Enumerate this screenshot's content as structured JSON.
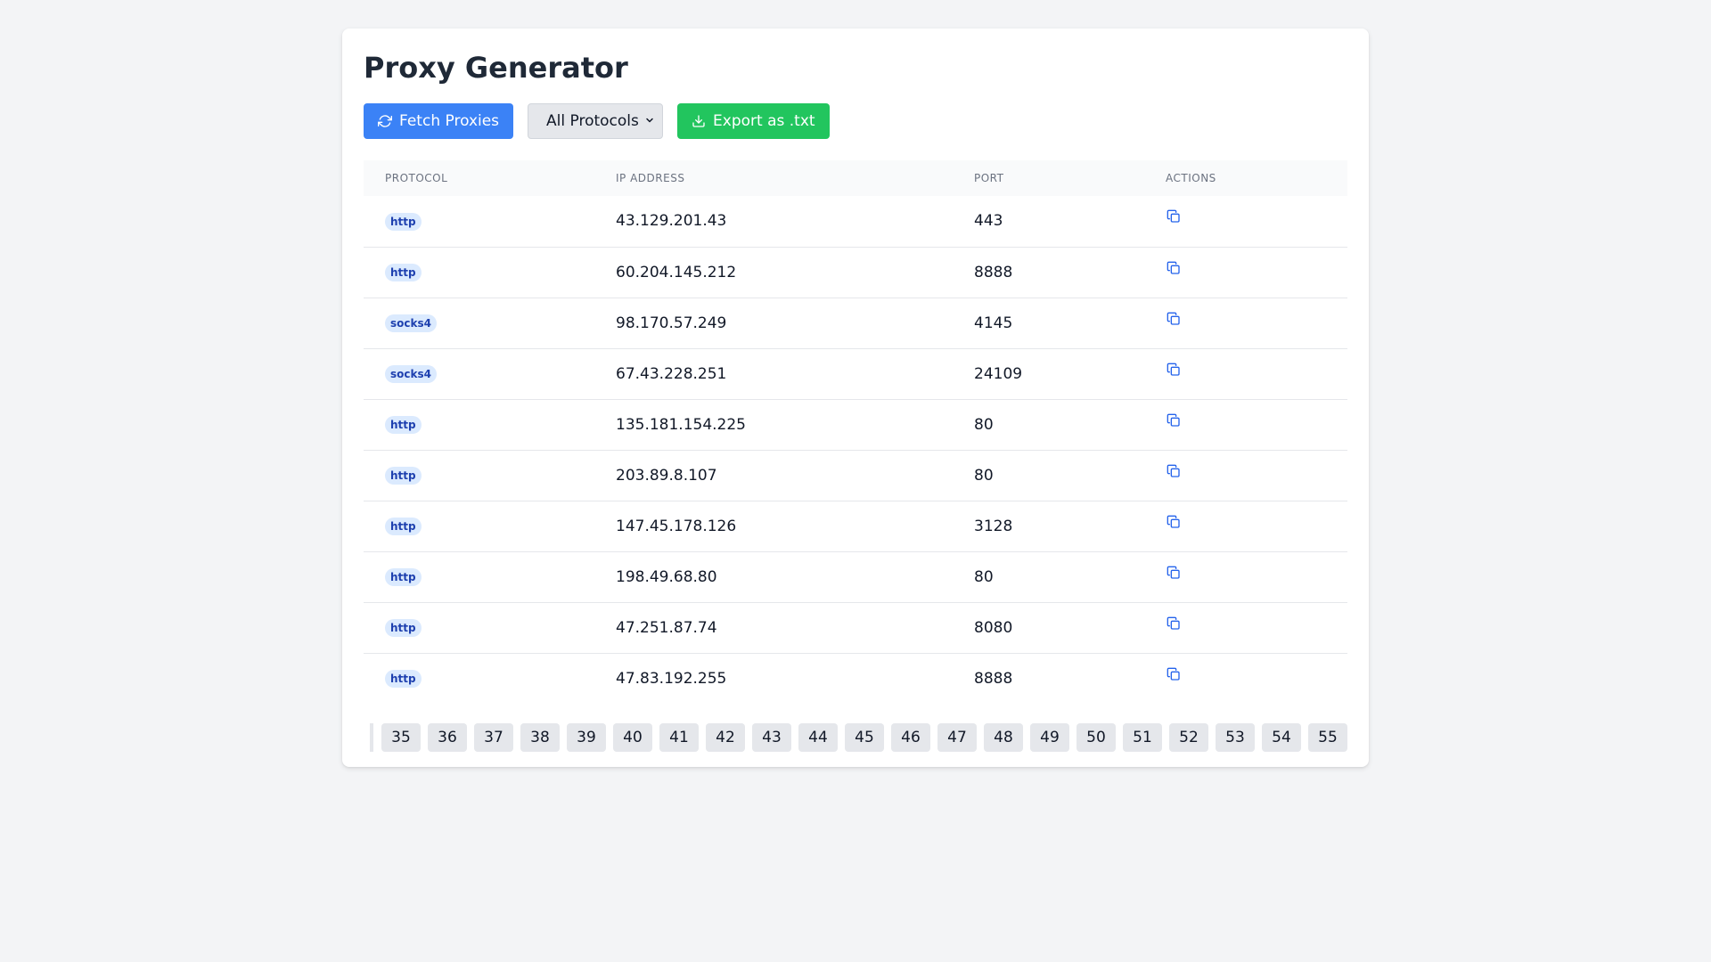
{
  "header": {
    "title": "Proxy Generator"
  },
  "toolbar": {
    "fetch_label": "Fetch Proxies",
    "protocol_select": {
      "selected": "All Protocols"
    },
    "export_label": "Export as .txt"
  },
  "table": {
    "columns": [
      "PROTOCOL",
      "IP ADDRESS",
      "PORT",
      "ACTIONS"
    ],
    "rows": [
      {
        "protocol": "http",
        "ip": "43.129.201.43",
        "port": "443"
      },
      {
        "protocol": "http",
        "ip": "60.204.145.212",
        "port": "8888"
      },
      {
        "protocol": "socks4",
        "ip": "98.170.57.249",
        "port": "4145"
      },
      {
        "protocol": "socks4",
        "ip": "67.43.228.251",
        "port": "24109"
      },
      {
        "protocol": "http",
        "ip": "135.181.154.225",
        "port": "80"
      },
      {
        "protocol": "http",
        "ip": "203.89.8.107",
        "port": "80"
      },
      {
        "protocol": "http",
        "ip": "147.45.178.126",
        "port": "3128"
      },
      {
        "protocol": "http",
        "ip": "198.49.68.80",
        "port": "80"
      },
      {
        "protocol": "http",
        "ip": "47.251.87.74",
        "port": "8080"
      },
      {
        "protocol": "http",
        "ip": "47.83.192.255",
        "port": "8888"
      }
    ]
  },
  "pagination": {
    "pages": [
      "35",
      "36",
      "37",
      "38",
      "39",
      "40",
      "41",
      "42",
      "43",
      "44",
      "45",
      "46",
      "47",
      "48",
      "49",
      "50",
      "51",
      "52",
      "53",
      "54",
      "55"
    ]
  },
  "icons": {
    "fetch": "refresh-icon",
    "export": "download-icon",
    "copy": "copy-icon",
    "select": "chevron-down-icon"
  },
  "colors": {
    "primary": "#3b82f6",
    "success": "#22c55e",
    "badge_bg": "#dbeafe",
    "badge_text": "#1e40af",
    "copy_icon": "#2563eb"
  }
}
